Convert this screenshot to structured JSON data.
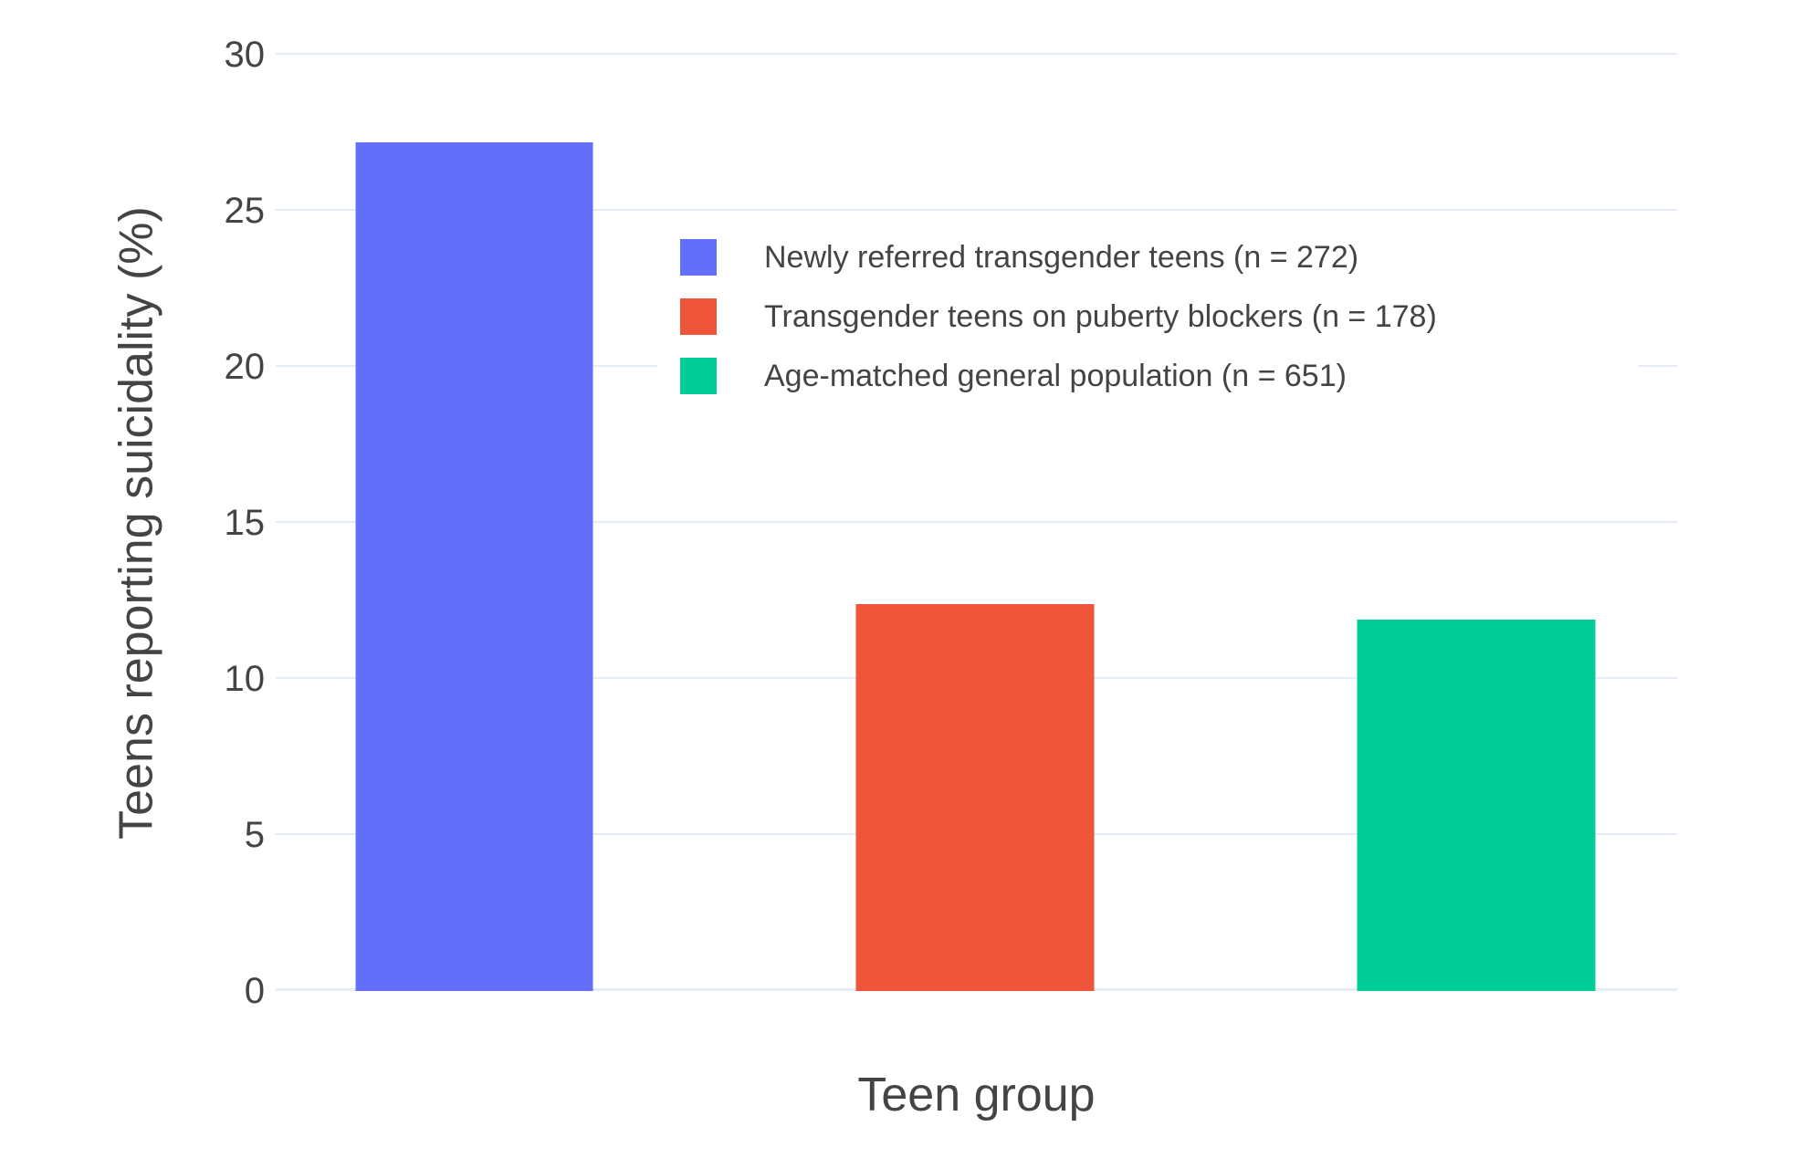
{
  "figure": {
    "background_color": "#FFFFFF",
    "text_color": "#444444",
    "grid_color": "#E5ECF6"
  },
  "chart_data": {
    "type": "bar",
    "title": "",
    "xlabel": "Teen group",
    "ylabel": "Teens reporting suicidality (%)",
    "ylim": [
      0,
      30
    ],
    "yticks": [
      0,
      5,
      10,
      15,
      20,
      25,
      30
    ],
    "grid": true,
    "legend_position": "inside-top-center",
    "categories": [
      "Newly referred transgender teens (n = 272)",
      "Transgender teens on puberty blockers (n = 178)",
      "Age-matched general population (n = 651)"
    ],
    "series": [
      {
        "name": "Newly referred transgender teens (n = 272)",
        "value": 27.2,
        "color": "#636EFA"
      },
      {
        "name": "Transgender teens on puberty blockers (n = 178)",
        "value": 12.4,
        "color": "#EF553B"
      },
      {
        "name": "Age-matched general population (n = 651)",
        "value": 11.9,
        "color": "#00CC96"
      }
    ]
  }
}
